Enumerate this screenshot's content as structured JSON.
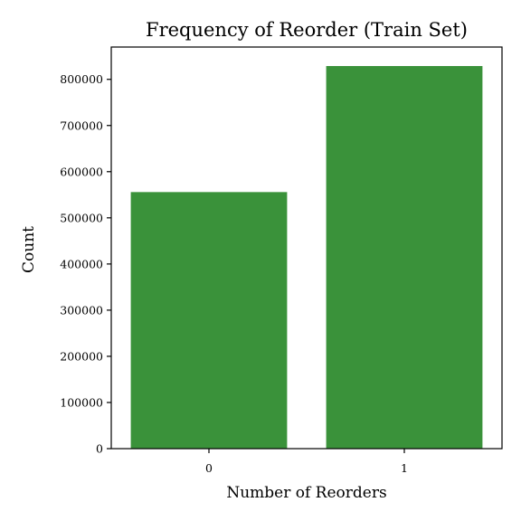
{
  "chart_data": {
    "type": "bar",
    "title": "Frequency of Reorder (Train Set)",
    "xlabel": "Number of Reorders",
    "ylabel": "Count",
    "categories": [
      "0",
      "1"
    ],
    "values": [
      555793,
      828824
    ],
    "ylim": [
      0,
      870000
    ],
    "yticks": [
      0,
      100000,
      200000,
      300000,
      400000,
      500000,
      600000,
      700000,
      800000
    ],
    "grid": false,
    "legend": "none",
    "bar_color": "#3a923a"
  }
}
